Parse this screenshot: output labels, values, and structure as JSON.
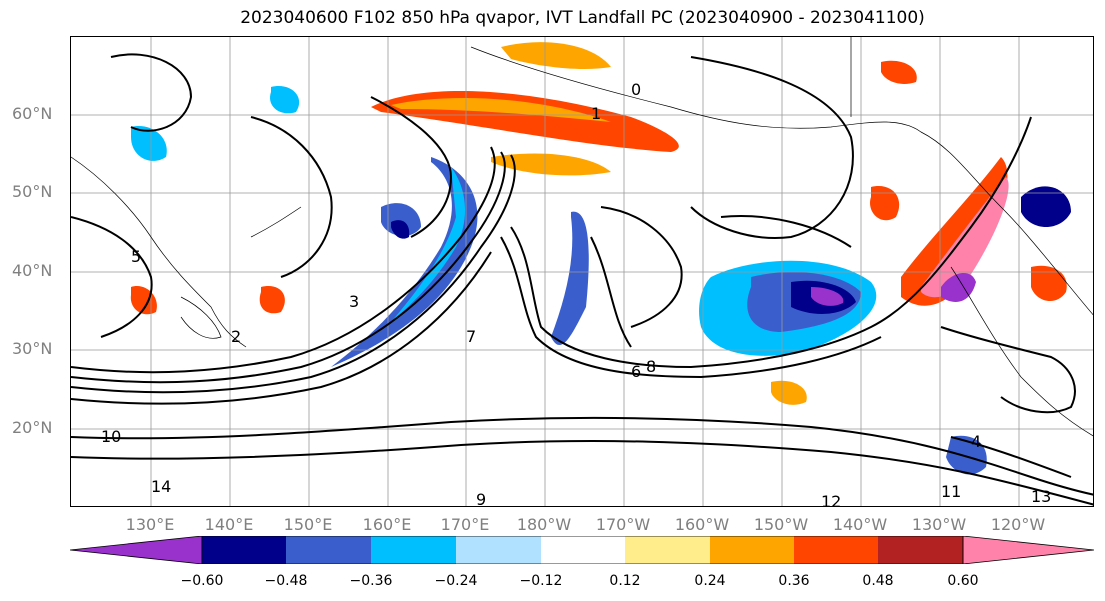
{
  "title": "2023040600 F102 850 hPa qvapor, IVT Landfall PC (2023040900 - 2023041100)",
  "map": {
    "lat_labels": [
      "60°N",
      "50°N",
      "40°N",
      "30°N",
      "20°N"
    ],
    "lon_labels": [
      "130°E",
      "140°E",
      "150°E",
      "160°E",
      "170°E",
      "180°W",
      "170°W",
      "160°W",
      "150°W",
      "140°W",
      "130°W",
      "120°W"
    ],
    "contour_labels": [
      "0",
      "1",
      "2",
      "3",
      "5",
      "6",
      "8",
      "10",
      "11",
      "12",
      "13",
      "14",
      "4",
      "9",
      "7"
    ]
  },
  "colorbar": {
    "ticks": [
      "−0.60",
      "−0.48",
      "−0.36",
      "−0.24",
      "−0.12",
      "0.12",
      "0.24",
      "0.36",
      "0.48",
      "0.60"
    ],
    "colors": [
      "#9932CC",
      "#00008B",
      "#3A5FCD",
      "#00BFFF",
      "#B0E2FF",
      "#FFFFFF",
      "#FFEC8B",
      "#FFA500",
      "#FF4500",
      "#B22222",
      "#FF82AB"
    ]
  }
}
